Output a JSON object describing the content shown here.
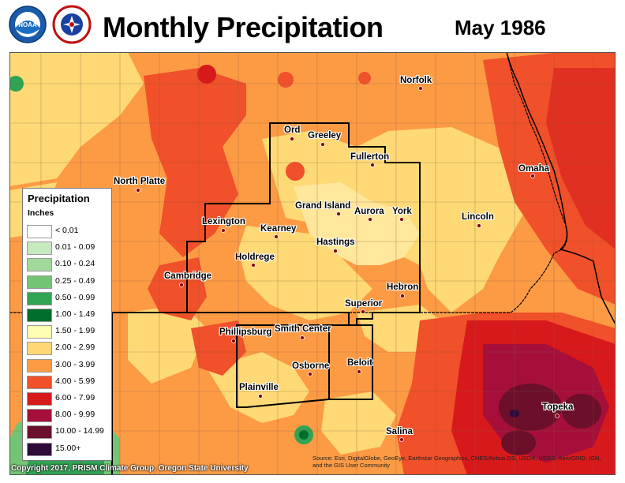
{
  "header": {
    "title": "Monthly Precipitation",
    "date": "May 1986",
    "logos": [
      "noaa-logo",
      "national-weather-service-logo"
    ]
  },
  "legend": {
    "title": "Precipitation",
    "units": "Inches",
    "classes": [
      {
        "label": "< 0.01",
        "color": "#ffffff"
      },
      {
        "label": "0.01 - 0.09",
        "color": "#c7e9c0"
      },
      {
        "label": "0.10 - 0.24",
        "color": "#a1d99b"
      },
      {
        "label": "0.25 - 0.49",
        "color": "#74c476"
      },
      {
        "label": "0.50 - 0.99",
        "color": "#31a354"
      },
      {
        "label": "1.00 - 1.49",
        "color": "#006d2c"
      },
      {
        "label": "1.50 - 1.99",
        "color": "#ffffb2"
      },
      {
        "label": "2.00 - 2.99",
        "color": "#fed976"
      },
      {
        "label": "3.00 - 3.99",
        "color": "#fd9b45"
      },
      {
        "label": "4.00 - 5.99",
        "color": "#f0502a"
      },
      {
        "label": "6.00 - 7.99",
        "color": "#d7191c"
      },
      {
        "label": "8.00 - 9.99",
        "color": "#a50f3a"
      },
      {
        "label": "10.00 - 14.99",
        "color": "#6b0f2a"
      },
      {
        "label": "15.00+",
        "color": "#2d0a3a"
      }
    ]
  },
  "cities": [
    {
      "name": "Norfolk"
    },
    {
      "name": "Ord"
    },
    {
      "name": "Greeley"
    },
    {
      "name": "Fullerton"
    },
    {
      "name": "Omaha"
    },
    {
      "name": "North Platte"
    },
    {
      "name": "Grand Island"
    },
    {
      "name": "Aurora"
    },
    {
      "name": "York"
    },
    {
      "name": "Lincoln"
    },
    {
      "name": "Lexington"
    },
    {
      "name": "Kearney"
    },
    {
      "name": "Hastings"
    },
    {
      "name": "Holdrege"
    },
    {
      "name": "Cambridge"
    },
    {
      "name": "Hebron"
    },
    {
      "name": "Superior"
    },
    {
      "name": "Phillipsburg"
    },
    {
      "name": "Smith Center"
    },
    {
      "name": "Beloit"
    },
    {
      "name": "Osborne"
    },
    {
      "name": "Plainville"
    },
    {
      "name": "Topeka"
    },
    {
      "name": "Salina"
    }
  ],
  "footer": {
    "copyright": "Copyright 2017, PRISM Climate Group, Oregon State University",
    "source": "Source: Esri, DigitalGlobe, GeoEye, Earthstar Geographics, CNES/Airbus DS, USDA, USGS, AeroGRID, IGN, and the GIS User Community"
  }
}
